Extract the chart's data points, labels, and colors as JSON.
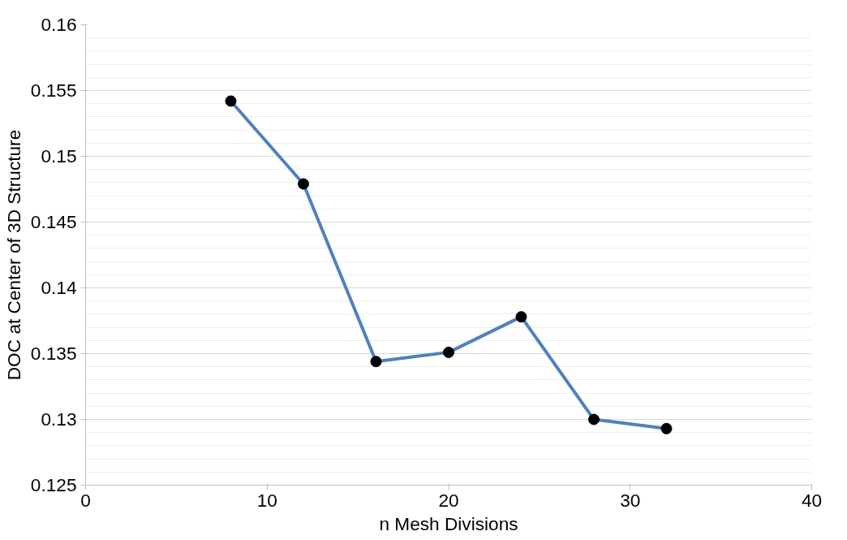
{
  "chart_data": {
    "type": "line",
    "xlabel": "n Mesh Divisions",
    "ylabel": "DOC at Center of 3D Structure",
    "x": [
      8,
      12,
      16,
      20,
      24,
      28,
      32
    ],
    "series": [
      {
        "color": "#4f81bd",
        "values": [
          0.1542,
          0.1479,
          0.1344,
          0.1351,
          0.1378,
          0.13,
          0.1293
        ]
      }
    ],
    "marker": "circle",
    "line_style": "solid",
    "grid": "y",
    "xlim": [
      0,
      40
    ],
    "xticks": [
      0,
      10,
      20,
      30,
      40
    ],
    "ylim": [
      0.125,
      0.16
    ],
    "yticks": [
      0.125,
      0.13,
      0.135,
      0.14,
      0.145,
      0.15,
      0.155,
      0.16
    ]
  }
}
